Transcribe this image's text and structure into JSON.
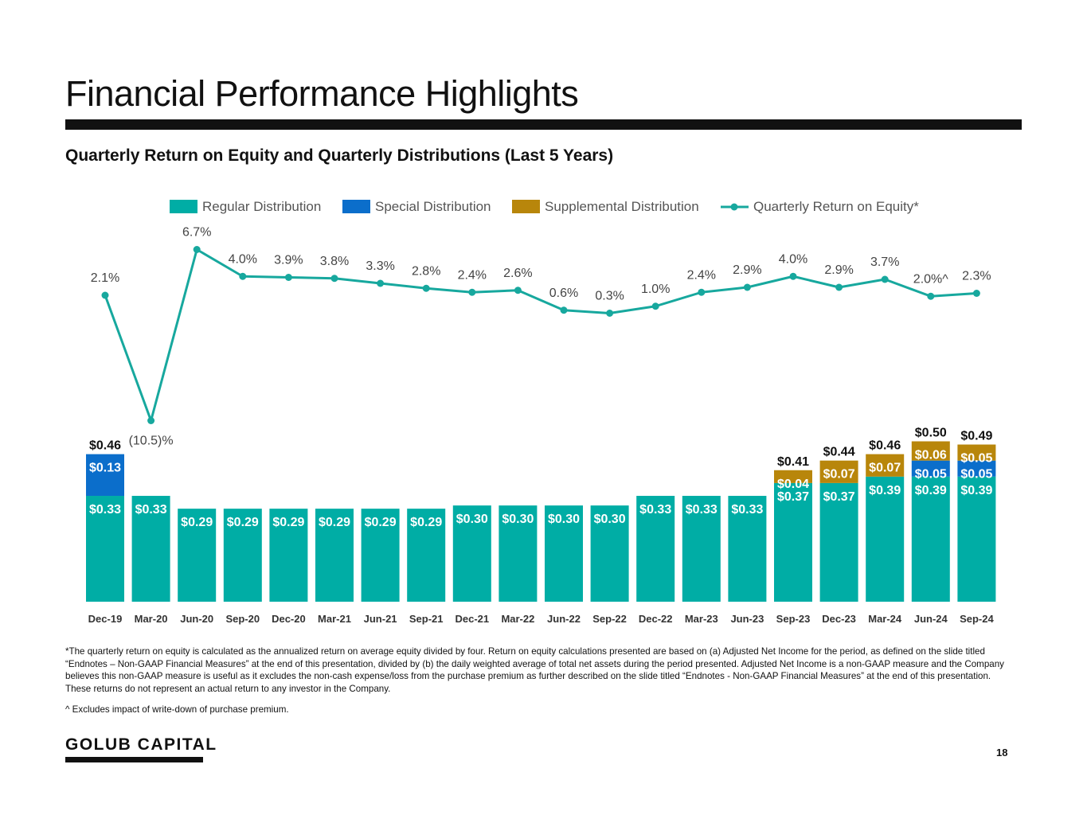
{
  "header": {
    "title": "Financial Performance Highlights",
    "subtitle": "Quarterly Return on Equity and Quarterly Distributions (Last 5 Years)"
  },
  "colors": {
    "regular": "#00ADA5",
    "special": "#0B6ECB",
    "supplemental": "#B8860B",
    "roe_line": "#17A89E"
  },
  "chart_data": {
    "type": "bar",
    "title": "Quarterly Return on Equity and Quarterly Distributions (Last 5 Years)",
    "categories": [
      "Dec-19",
      "Mar-20",
      "Jun-20",
      "Sep-20",
      "Dec-20",
      "Mar-21",
      "Jun-21",
      "Sep-21",
      "Dec-21",
      "Mar-22",
      "Jun-22",
      "Sep-22",
      "Dec-22",
      "Mar-23",
      "Jun-23",
      "Sep-23",
      "Dec-23",
      "Mar-24",
      "Jun-24",
      "Sep-24"
    ],
    "legend": [
      "Regular Distribution",
      "Special Distribution",
      "Supplemental Distribution",
      "Quarterly Return on Equity*"
    ],
    "legend_position": "top",
    "stacked": true,
    "series": [
      {
        "name": "Regular Distribution",
        "values": [
          0.33,
          0.33,
          0.29,
          0.29,
          0.29,
          0.29,
          0.29,
          0.29,
          0.3,
          0.3,
          0.3,
          0.3,
          0.33,
          0.33,
          0.33,
          0.37,
          0.37,
          0.39,
          0.39,
          0.39
        ],
        "labels": [
          "$0.33",
          "$0.33",
          "$0.29",
          "$0.29",
          "$0.29",
          "$0.29",
          "$0.29",
          "$0.29",
          "$0.30",
          "$0.30",
          "$0.30",
          "$0.30",
          "$0.33",
          "$0.33",
          "$0.33",
          "$0.37",
          "$0.37",
          "$0.39",
          "$0.39",
          "$0.39"
        ]
      },
      {
        "name": "Special Distribution",
        "values": [
          0.13,
          0,
          0,
          0,
          0,
          0,
          0,
          0,
          0,
          0,
          0,
          0,
          0,
          0,
          0,
          0,
          0,
          0,
          0.05,
          0.05
        ],
        "labels": [
          "$0.13",
          "",
          "",
          "",
          "",
          "",
          "",
          "",
          "",
          "",
          "",
          "",
          "",
          "",
          "",
          "",
          "",
          "",
          "$0.05",
          "$0.05"
        ]
      },
      {
        "name": "Supplemental Distribution",
        "values": [
          0,
          0,
          0,
          0,
          0,
          0,
          0,
          0,
          0,
          0,
          0,
          0,
          0,
          0,
          0,
          0.04,
          0.07,
          0.07,
          0.06,
          0.05
        ],
        "labels": [
          "",
          "",
          "",
          "",
          "",
          "",
          "",
          "",
          "",
          "",
          "",
          "",
          "",
          "",
          "",
          "$0.04",
          "$0.07",
          "$0.07",
          "$0.06",
          "$0.05"
        ]
      }
    ],
    "totals": [
      "$0.46",
      "",
      "",
      "",
      "",
      "",
      "",
      "",
      "",
      "",
      "",
      "",
      "",
      "",
      "",
      "$0.41",
      "$0.44",
      "$0.46",
      "$0.50",
      "$0.49"
    ],
    "line": {
      "name": "Quarterly Return on Equity*",
      "values": [
        2.1,
        -10.5,
        6.7,
        4.0,
        3.9,
        3.8,
        3.3,
        2.8,
        2.4,
        2.6,
        0.6,
        0.3,
        1.0,
        2.4,
        2.9,
        4.0,
        2.9,
        3.7,
        2.0,
        2.3
      ],
      "labels": [
        "2.1%",
        "(10.5)%",
        "6.7%",
        "4.0%",
        "3.9%",
        "3.8%",
        "3.3%",
        "2.8%",
        "2.4%",
        "2.6%",
        "0.6%",
        "0.3%",
        "1.0%",
        "2.4%",
        "2.9%",
        "4.0%",
        "2.9%",
        "3.7%",
        "2.0%^",
        "2.3%"
      ]
    },
    "xlabel": "",
    "ylabel": ""
  },
  "footnotes": {
    "main": "*The quarterly return on equity is calculated as the annualized return on average equity divided by four. Return on equity calculations presented are based on (a) Adjusted Net Income for the period, as defined on the slide titled “Endnotes – Non-GAAP Financial Measures” at the end of this presentation, divided by (b) the daily weighted average of total net assets during the period presented. Adjusted Net Income is a non-GAAP measure and the Company believes this non-GAAP measure is useful as it excludes the non-cash expense/loss from the purchase premium as further described on the slide titled “Endnotes - Non-GAAP Financial Measures”  at the end of this presentation. These returns do not represent an actual return to any investor in the Company.",
    "caret": "^ Excludes impact of write-down of purchase premium."
  },
  "footer": {
    "logo": "GOLUB CAPITAL",
    "page": "18"
  }
}
